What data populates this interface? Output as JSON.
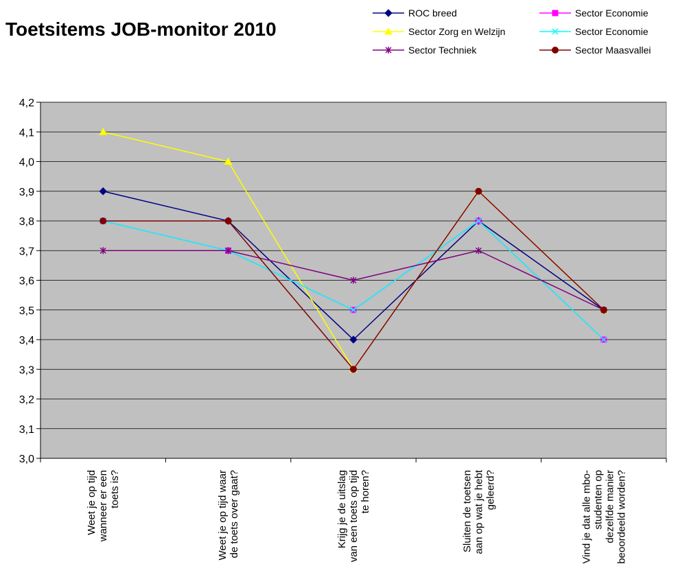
{
  "chart_data": {
    "type": "line",
    "title": "Toetsitems JOB-monitor 2010",
    "xlabel": "",
    "ylabel": "",
    "ylim": [
      3.0,
      4.2
    ],
    "ytick_step": 0.1,
    "ytick_labels": [
      "3,0",
      "3,1",
      "3,2",
      "3,3",
      "3,4",
      "3,5",
      "3,6",
      "3,7",
      "3,8",
      "3,9",
      "4,0",
      "4,1",
      "4,2"
    ],
    "grid": true,
    "legend_position": "top-right",
    "plot_background": "#c0c0c0",
    "categories": [
      [
        "Weet je op tijd",
        "wanneer er een",
        "toets is?"
      ],
      [
        "Weet je op tijd waar",
        "de toets over gaat?"
      ],
      [
        "Krijg je de uitslag",
        "van een toets op tijd",
        "te horen?"
      ],
      [
        "Sluiten de toetsen",
        "aan op wat je hebt",
        "geleerd?"
      ],
      [
        "Vind je dat alle mbo-",
        "studenten op",
        "dezelfde manier",
        "beoordeeld worden?"
      ]
    ],
    "series": [
      {
        "name": "ROC breed",
        "color": "#000080",
        "marker": "diamond",
        "values": [
          3.9,
          3.8,
          3.4,
          3.8,
          3.5
        ]
      },
      {
        "name": "Sector Economie",
        "color": "#ff00ff",
        "marker": "square",
        "values": [
          3.8,
          3.7,
          3.5,
          3.8,
          3.4
        ]
      },
      {
        "name": "Sector Zorg en Welzijn",
        "color": "#ffff00",
        "marker": "triangle",
        "values": [
          4.1,
          4.0,
          3.3,
          3.9,
          3.5
        ]
      },
      {
        "name": "Sector Economie",
        "color": "#00ffff",
        "marker": "x",
        "values": [
          3.8,
          3.7,
          3.5,
          3.8,
          3.4
        ]
      },
      {
        "name": "Sector Techniek",
        "color": "#800080",
        "marker": "star",
        "values": [
          3.7,
          3.7,
          3.6,
          3.7,
          3.5
        ]
      },
      {
        "name": "Sector Maasvallei",
        "color": "#800000",
        "marker": "circle",
        "values": [
          3.8,
          3.8,
          3.3,
          3.9,
          3.5
        ]
      }
    ]
  }
}
